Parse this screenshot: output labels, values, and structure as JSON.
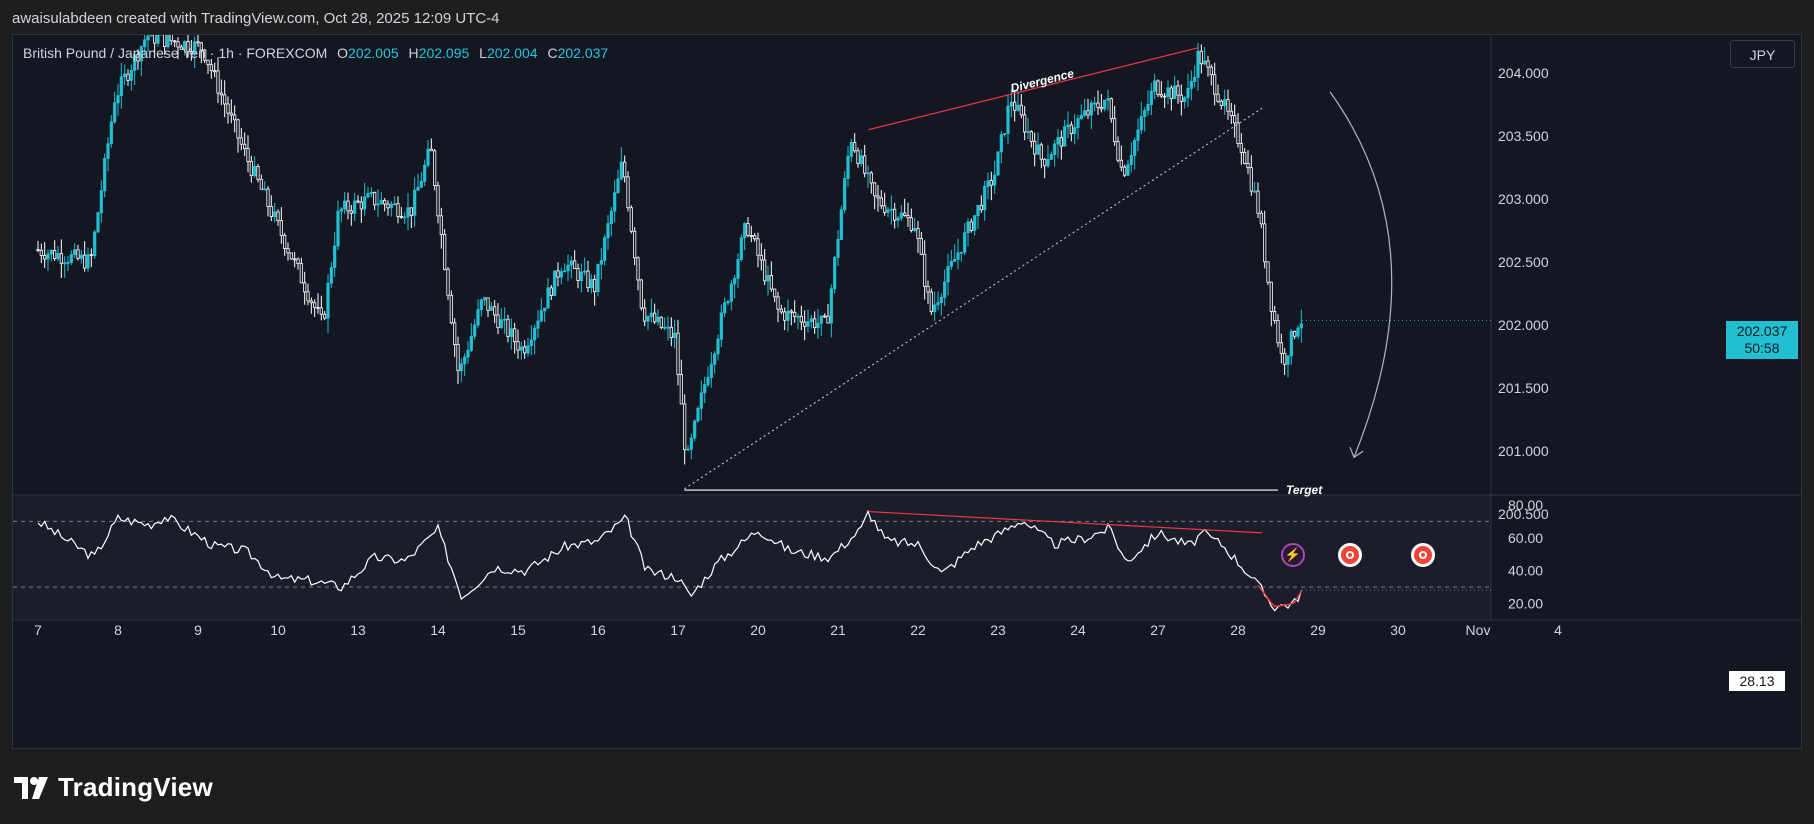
{
  "header": {
    "attribution": "awaisulabdeen created with TradingView.com, Oct 28, 2025 12:09 UTC-4"
  },
  "legend": {
    "symbol": "British Pound / Japanese Yen · 1h · FOREXCOM",
    "o_label": "O",
    "o_value": "202.005",
    "h_label": "H",
    "h_value": "202.095",
    "l_label": "L",
    "l_value": "202.004",
    "c_label": "C",
    "c_value": "202.037"
  },
  "currency_button": "JPY",
  "last_price": {
    "price": "202.037",
    "countdown": "50:58"
  },
  "rsi_last": "28.13",
  "branding": {
    "logo_text": "TradingView"
  },
  "colors": {
    "up": "#22bfd3",
    "down": "#ffffff",
    "drawing_red": "#f23645",
    "background": "#131722",
    "panel": "#1b1e2a"
  },
  "icons": [
    "lightning-event-icon",
    "red-event-icon",
    "red-event-icon"
  ],
  "chart_data": [
    {
      "type": "candlestick",
      "title": "British Pound / Japanese Yen · 1h · FOREXCOM",
      "x_tick_labels": [
        "7",
        "8",
        "9",
        "10",
        "13",
        "14",
        "15",
        "16",
        "17",
        "20",
        "21",
        "22",
        "23",
        "24",
        "27",
        "28",
        "29",
        "30",
        "Nov",
        "4"
      ],
      "y_tick_labels": [
        "204.000",
        "203.500",
        "203.000",
        "202.500",
        "202.000",
        "201.500",
        "201.000",
        "200.500"
      ],
      "ylim": [
        200.3,
        204.55
      ],
      "close_path": [
        {
          "x": 0,
          "y": 202.6
        },
        {
          "x": 0.7,
          "y": 202.5
        },
        {
          "x": 1.0,
          "y": 203.8
        },
        {
          "x": 1.4,
          "y": 204.3
        },
        {
          "x": 2.1,
          "y": 204.2
        },
        {
          "x": 2.6,
          "y": 203.4
        },
        {
          "x": 3.1,
          "y": 202.7
        },
        {
          "x": 3.6,
          "y": 202.0
        },
        {
          "x": 3.8,
          "y": 202.9
        },
        {
          "x": 4.2,
          "y": 203.0
        },
        {
          "x": 4.7,
          "y": 202.9
        },
        {
          "x": 4.95,
          "y": 203.4
        },
        {
          "x": 5.3,
          "y": 201.6
        },
        {
          "x": 5.6,
          "y": 202.2
        },
        {
          "x": 6.1,
          "y": 201.8
        },
        {
          "x": 6.6,
          "y": 202.5
        },
        {
          "x": 7.0,
          "y": 202.3
        },
        {
          "x": 7.35,
          "y": 203.3
        },
        {
          "x": 7.6,
          "y": 202.1
        },
        {
          "x": 8.0,
          "y": 201.9
        },
        {
          "x": 8.15,
          "y": 200.9
        },
        {
          "x": 8.4,
          "y": 201.6
        },
        {
          "x": 8.9,
          "y": 202.8
        },
        {
          "x": 9.3,
          "y": 202.1
        },
        {
          "x": 9.9,
          "y": 202.0
        },
        {
          "x": 10.2,
          "y": 203.5
        },
        {
          "x": 10.5,
          "y": 203.0
        },
        {
          "x": 11.0,
          "y": 202.8
        },
        {
          "x": 11.2,
          "y": 202.1
        },
        {
          "x": 11.7,
          "y": 202.8
        },
        {
          "x": 12.0,
          "y": 203.2
        },
        {
          "x": 12.2,
          "y": 203.8
        },
        {
          "x": 12.6,
          "y": 203.3
        },
        {
          "x": 13.0,
          "y": 203.6
        },
        {
          "x": 13.4,
          "y": 203.8
        },
        {
          "x": 13.6,
          "y": 203.2
        },
        {
          "x": 14.0,
          "y": 203.9
        },
        {
          "x": 14.4,
          "y": 203.8
        },
        {
          "x": 14.55,
          "y": 204.15
        },
        {
          "x": 14.75,
          "y": 203.9
        },
        {
          "x": 15.1,
          "y": 203.4
        },
        {
          "x": 15.3,
          "y": 202.9
        },
        {
          "x": 15.45,
          "y": 202.2
        },
        {
          "x": 15.6,
          "y": 201.7
        },
        {
          "x": 15.8,
          "y": 202.04
        }
      ],
      "drawings": {
        "divergence_label": "Divergence",
        "divergence_line": [
          {
            "x": 10.38,
            "y": 203.55
          },
          {
            "x": 14.5,
            "y": 204.2
          }
        ],
        "trend_line": [
          {
            "x": 8.08,
            "y": 200.7
          },
          {
            "x": 15.3,
            "y": 203.72
          }
        ],
        "target_label": "Terget",
        "target_line": {
          "x_start": 8.08,
          "x_end": 15.5,
          "y": 200.69
        },
        "projection_arrow": [
          {
            "x": 16.15,
            "y": 203.85
          },
          {
            "x": 16.45,
            "y": 200.95
          }
        ]
      }
    },
    {
      "type": "line",
      "title": "",
      "y_tick_labels": [
        "80.00",
        "60.00",
        "40.00",
        "20.00"
      ],
      "ylim": [
        12,
        86
      ],
      "bands": [
        70,
        30
      ],
      "values_path": [
        {
          "x": 0,
          "y": 70
        },
        {
          "x": 0.7,
          "y": 48
        },
        {
          "x": 1.0,
          "y": 72
        },
        {
          "x": 1.4,
          "y": 68
        },
        {
          "x": 1.6,
          "y": 73
        },
        {
          "x": 2.2,
          "y": 55
        },
        {
          "x": 2.6,
          "y": 52
        },
        {
          "x": 3.0,
          "y": 35
        },
        {
          "x": 3.4,
          "y": 34
        },
        {
          "x": 3.8,
          "y": 30
        },
        {
          "x": 4.2,
          "y": 48
        },
        {
          "x": 4.6,
          "y": 46
        },
        {
          "x": 5.0,
          "y": 65
        },
        {
          "x": 5.3,
          "y": 24
        },
        {
          "x": 5.7,
          "y": 42
        },
        {
          "x": 6.1,
          "y": 40
        },
        {
          "x": 6.6,
          "y": 55
        },
        {
          "x": 7.0,
          "y": 58
        },
        {
          "x": 7.35,
          "y": 72
        },
        {
          "x": 7.6,
          "y": 40
        },
        {
          "x": 8.0,
          "y": 36
        },
        {
          "x": 8.15,
          "y": 24
        },
        {
          "x": 8.5,
          "y": 45
        },
        {
          "x": 9.0,
          "y": 65
        },
        {
          "x": 9.4,
          "y": 52
        },
        {
          "x": 9.9,
          "y": 48
        },
        {
          "x": 10.3,
          "y": 66
        },
        {
          "x": 10.38,
          "y": 76
        },
        {
          "x": 10.6,
          "y": 58
        },
        {
          "x": 11.0,
          "y": 56
        },
        {
          "x": 11.3,
          "y": 38
        },
        {
          "x": 11.7,
          "y": 55
        },
        {
          "x": 12.0,
          "y": 62
        },
        {
          "x": 12.3,
          "y": 71
        },
        {
          "x": 12.7,
          "y": 56
        },
        {
          "x": 13.1,
          "y": 60
        },
        {
          "x": 13.4,
          "y": 66
        },
        {
          "x": 13.6,
          "y": 45
        },
        {
          "x": 14.0,
          "y": 63
        },
        {
          "x": 14.4,
          "y": 55
        },
        {
          "x": 14.55,
          "y": 63
        },
        {
          "x": 14.8,
          "y": 56
        },
        {
          "x": 15.1,
          "y": 40
        },
        {
          "x": 15.3,
          "y": 28
        },
        {
          "x": 15.45,
          "y": 18
        },
        {
          "x": 15.7,
          "y": 20
        },
        {
          "x": 15.8,
          "y": 28.13
        }
      ],
      "divergence_line": [
        {
          "x": 10.38,
          "y": 76
        },
        {
          "x": 15.3,
          "y": 63
        }
      ]
    }
  ]
}
